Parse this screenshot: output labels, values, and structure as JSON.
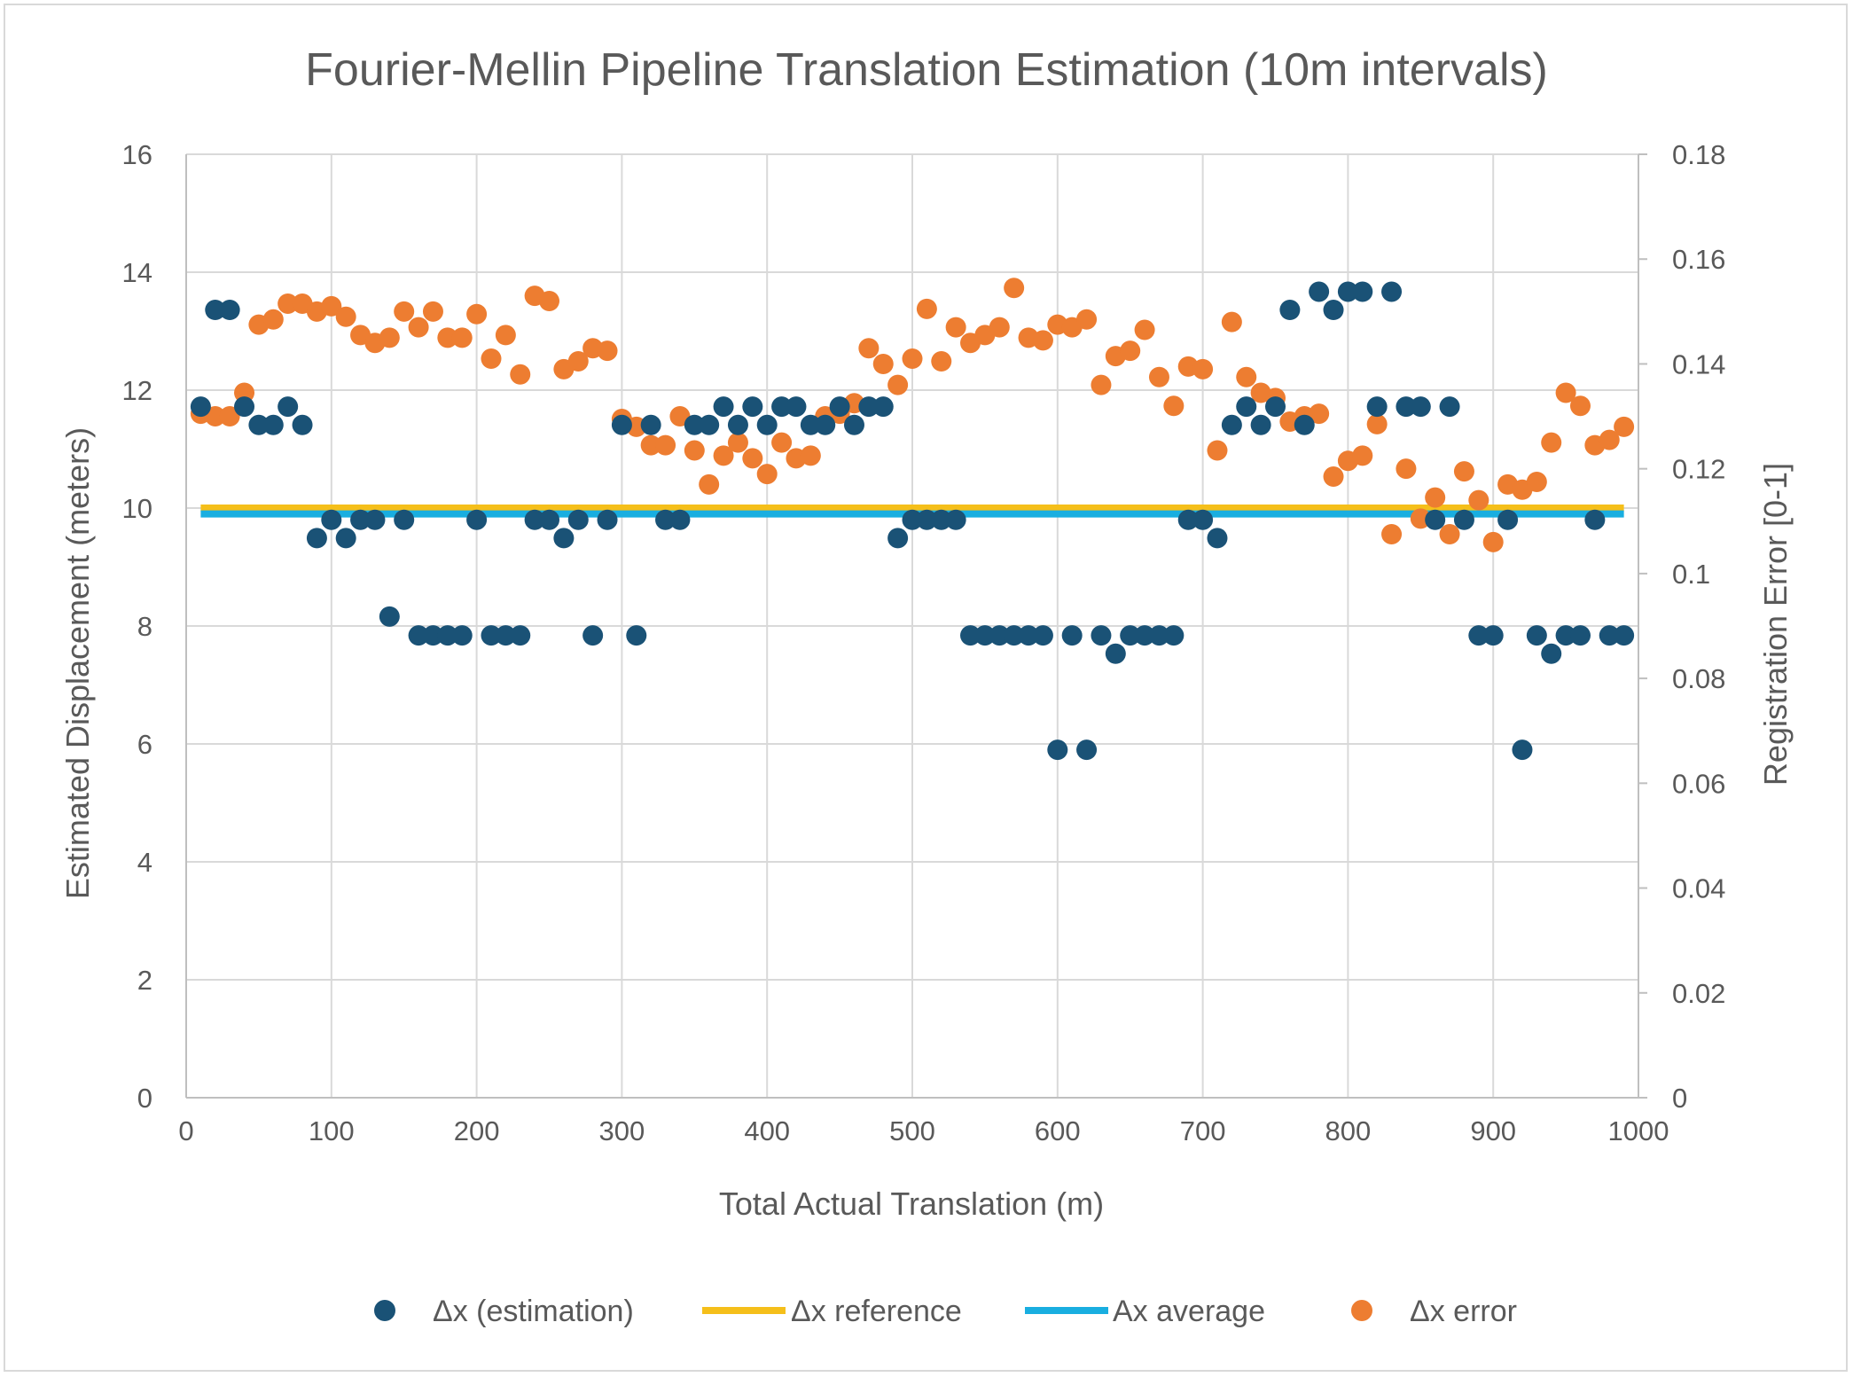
{
  "chart_data": {
    "type": "scatter",
    "title": "Fourier-Mellin Pipeline Translation Estimation (10m intervals)",
    "xlabel": "Total Actual Translation (m)",
    "ylabel": "Estimated Displacement (meters)",
    "y2label": "Registration Error [0-1]",
    "xlim": [
      0,
      1000
    ],
    "ylim": [
      0,
      16
    ],
    "y2lim": [
      0,
      0.18
    ],
    "x_ticks": [
      "0",
      "100",
      "200",
      "300",
      "400",
      "500",
      "600",
      "700",
      "800",
      "900",
      "1000"
    ],
    "y_ticks": [
      "0",
      "2",
      "4",
      "6",
      "8",
      "10",
      "12",
      "14",
      "16"
    ],
    "y2_ticks": [
      "0",
      "0.02",
      "0.04",
      "0.06",
      "0.08",
      "0.1",
      "0.12",
      "0.14",
      "0.16",
      "0.18"
    ],
    "grid": true,
    "legend_position": "bottom",
    "series": [
      {
        "name": "Δx (estimation)",
        "kind": "scatter",
        "axis": "left",
        "color": "#1a5276",
        "x": [
          10,
          20,
          30,
          40,
          50,
          60,
          70,
          80,
          90,
          100,
          110,
          120,
          130,
          140,
          150,
          160,
          170,
          180,
          190,
          200,
          210,
          220,
          230,
          240,
          250,
          260,
          270,
          280,
          290,
          300,
          310,
          320,
          330,
          340,
          350,
          360,
          370,
          380,
          390,
          400,
          410,
          420,
          430,
          440,
          450,
          460,
          470,
          480,
          490,
          500,
          510,
          520,
          530,
          540,
          550,
          560,
          570,
          580,
          590,
          600,
          610,
          620,
          630,
          640,
          650,
          660,
          670,
          680,
          690,
          700,
          710,
          720,
          730,
          740,
          750,
          760,
          770,
          780,
          790,
          800,
          810,
          820,
          830,
          840,
          850,
          860,
          870,
          880,
          890,
          900,
          910,
          920,
          930,
          940,
          950,
          960,
          970,
          980,
          990
        ],
        "y": [
          11.72,
          13.36,
          13.36,
          11.72,
          11.41,
          11.41,
          11.72,
          11.41,
          9.49,
          9.8,
          9.49,
          9.8,
          9.8,
          8.16,
          9.8,
          7.84,
          7.84,
          7.84,
          7.84,
          9.8,
          7.84,
          7.84,
          7.84,
          9.8,
          9.8,
          9.49,
          9.8,
          7.84,
          9.8,
          11.41,
          7.84,
          11.41,
          9.8,
          9.8,
          11.41,
          11.41,
          11.72,
          11.41,
          11.72,
          11.41,
          11.72,
          11.72,
          11.41,
          11.41,
          11.72,
          11.41,
          11.72,
          11.72,
          9.49,
          9.8,
          9.8,
          9.8,
          9.8,
          7.84,
          7.84,
          7.84,
          7.84,
          7.84,
          7.84,
          5.9,
          7.84,
          5.9,
          7.84,
          7.53,
          7.84,
          7.84,
          7.84,
          7.84,
          9.8,
          9.8,
          9.49,
          11.41,
          11.72,
          11.41,
          11.72,
          13.36,
          11.41,
          13.67,
          13.36,
          13.67,
          13.67,
          11.72,
          13.67,
          11.72,
          11.72,
          9.8,
          11.72,
          9.8,
          7.84,
          7.84,
          9.8,
          5.9,
          7.84,
          7.53,
          7.84,
          7.84,
          9.8,
          7.84,
          7.84
        ]
      },
      {
        "name": "Δx reference",
        "kind": "line",
        "axis": "left",
        "color": "#f5bf1a",
        "x": [
          10,
          990
        ],
        "y": [
          10,
          10
        ]
      },
      {
        "name": "Ax average",
        "kind": "line",
        "axis": "left",
        "color": "#19aee0",
        "x": [
          10,
          990
        ],
        "y": [
          9.9,
          9.9
        ]
      },
      {
        "name": "Δx error",
        "kind": "scatter",
        "axis": "right",
        "color": "#ed7d31",
        "x": [
          10,
          20,
          30,
          40,
          50,
          60,
          70,
          80,
          90,
          100,
          110,
          120,
          130,
          140,
          150,
          160,
          170,
          180,
          190,
          200,
          210,
          220,
          230,
          240,
          250,
          260,
          270,
          280,
          290,
          300,
          310,
          320,
          330,
          340,
          350,
          360,
          370,
          380,
          390,
          400,
          410,
          420,
          430,
          440,
          450,
          460,
          470,
          480,
          490,
          500,
          510,
          520,
          530,
          540,
          550,
          560,
          570,
          580,
          590,
          600,
          610,
          620,
          630,
          640,
          650,
          660,
          670,
          680,
          690,
          700,
          710,
          720,
          730,
          740,
          750,
          760,
          770,
          780,
          790,
          800,
          810,
          820,
          830,
          840,
          850,
          860,
          870,
          880,
          890,
          900,
          910,
          920,
          930,
          940,
          950,
          960,
          970,
          980,
          990
        ],
        "y": [
          0.1305,
          0.13,
          0.13,
          0.1345,
          0.1475,
          0.1485,
          0.1515,
          0.1515,
          0.15,
          0.151,
          0.149,
          0.1455,
          0.144,
          0.145,
          0.15,
          0.147,
          0.15,
          0.145,
          0.145,
          0.1495,
          0.141,
          0.1455,
          0.138,
          0.153,
          0.152,
          0.139,
          0.1405,
          0.143,
          0.1425,
          0.1295,
          0.128,
          0.1245,
          0.1245,
          0.13,
          0.1235,
          0.117,
          0.1225,
          0.125,
          0.122,
          0.119,
          0.125,
          0.122,
          0.1225,
          0.13,
          0.1305,
          0.1325,
          0.143,
          0.14,
          0.136,
          0.141,
          0.1505,
          0.1405,
          0.147,
          0.144,
          0.1455,
          0.147,
          0.1545,
          0.145,
          0.1445,
          0.1475,
          0.147,
          0.1485,
          0.136,
          0.1415,
          0.1425,
          0.1465,
          0.1375,
          0.132,
          0.1395,
          0.139,
          0.1235,
          0.148,
          0.1375,
          0.1345,
          0.1335,
          0.129,
          0.13,
          0.1305,
          0.1185,
          0.1215,
          0.1225,
          0.1285,
          0.1075,
          0.12,
          0.1105,
          0.1145,
          0.1075,
          0.1195,
          0.114,
          0.106,
          0.117,
          0.116,
          0.1175,
          0.125,
          0.1345,
          0.132,
          0.1245,
          0.1255,
          0.128
        ]
      }
    ]
  }
}
